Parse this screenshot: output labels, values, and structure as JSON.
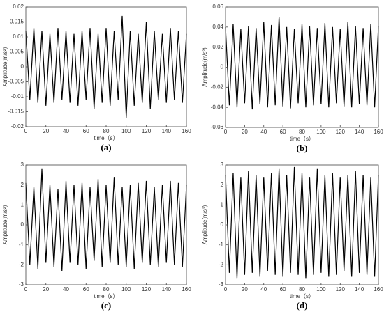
{
  "chart_data": [
    {
      "type": "line",
      "caption": "(a)",
      "xlabel": "time（s）",
      "ylabel": "Amplitude(m/s²)",
      "color": "#000000",
      "xlim": [
        0,
        160
      ],
      "xticks": [
        0,
        20,
        40,
        60,
        80,
        100,
        120,
        140,
        160
      ],
      "ylim": [
        -0.02,
        0.02
      ],
      "yticks": [
        -0.02,
        -0.015,
        -0.01,
        -0.005,
        0,
        0.005,
        0.01,
        0.015,
        0.02
      ],
      "x": [
        0,
        4,
        8,
        12,
        16,
        20,
        24,
        28,
        32,
        36,
        40,
        44,
        48,
        52,
        56,
        60,
        64,
        68,
        72,
        76,
        80,
        84,
        88,
        92,
        96,
        100,
        104,
        108,
        112,
        116,
        120,
        124,
        128,
        132,
        136,
        140,
        144,
        148,
        152,
        156,
        160
      ],
      "values": [
        0.012,
        -0.011,
        0.013,
        -0.012,
        0.012,
        -0.013,
        0.011,
        -0.012,
        0.013,
        -0.011,
        0.012,
        -0.012,
        0.011,
        -0.013,
        0.012,
        -0.011,
        0.013,
        -0.014,
        0.011,
        -0.012,
        0.013,
        -0.013,
        0.012,
        -0.011,
        0.017,
        -0.017,
        0.012,
        -0.013,
        0.011,
        -0.012,
        0.015,
        -0.014,
        0.012,
        -0.011,
        0.011,
        -0.012,
        0.013,
        -0.011,
        0.012,
        -0.012,
        0.011
      ]
    },
    {
      "type": "line",
      "caption": "(b)",
      "xlabel": "time（s）",
      "ylabel": "Amplitude(m/s²)",
      "color": "#000000",
      "xlim": [
        0,
        160
      ],
      "xticks": [
        0,
        20,
        40,
        60,
        80,
        100,
        120,
        140,
        160
      ],
      "ylim": [
        -0.06,
        0.06
      ],
      "yticks": [
        -0.06,
        -0.04,
        -0.02,
        0,
        0.02,
        0.04,
        0.06
      ],
      "x": [
        0,
        4,
        8,
        12,
        16,
        20,
        24,
        28,
        32,
        36,
        40,
        44,
        48,
        52,
        56,
        60,
        64,
        68,
        72,
        76,
        80,
        84,
        88,
        92,
        96,
        100,
        104,
        108,
        112,
        116,
        120,
        124,
        128,
        132,
        136,
        140,
        144,
        148,
        152,
        156,
        160
      ],
      "values": [
        0.04,
        -0.038,
        0.043,
        -0.04,
        0.038,
        -0.036,
        0.041,
        -0.042,
        0.039,
        -0.037,
        0.045,
        -0.04,
        0.042,
        -0.038,
        0.05,
        -0.039,
        0.04,
        -0.041,
        0.038,
        -0.036,
        0.043,
        -0.04,
        0.041,
        -0.038,
        0.039,
        -0.037,
        0.044,
        -0.04,
        0.04,
        -0.036,
        0.038,
        -0.039,
        0.045,
        -0.04,
        0.041,
        -0.037,
        0.039,
        -0.038,
        0.043,
        -0.04,
        0.041
      ]
    },
    {
      "type": "line",
      "caption": "(c)",
      "xlabel": "time（s）",
      "ylabel": "Amplitude(m/s²)",
      "color": "#000000",
      "xlim": [
        0,
        160
      ],
      "xticks": [
        0,
        20,
        40,
        60,
        80,
        100,
        120,
        140,
        160
      ],
      "ylim": [
        -3,
        3
      ],
      "yticks": [
        -3,
        -2,
        -1,
        0,
        1,
        2,
        3
      ],
      "x": [
        0,
        4,
        8,
        12,
        16,
        20,
        24,
        28,
        32,
        36,
        40,
        44,
        48,
        52,
        56,
        60,
        64,
        68,
        72,
        76,
        80,
        84,
        88,
        92,
        96,
        100,
        104,
        108,
        112,
        116,
        120,
        124,
        128,
        132,
        136,
        140,
        144,
        148,
        152,
        156,
        160
      ],
      "values": [
        2.1,
        -2.0,
        1.9,
        -2.2,
        2.8,
        -1.9,
        2.0,
        -2.1,
        1.8,
        -2.3,
        2.2,
        -1.9,
        2.0,
        -2.0,
        2.1,
        -2.2,
        1.9,
        -1.8,
        2.3,
        -2.1,
        2.0,
        -1.9,
        2.4,
        -2.0,
        1.9,
        -2.1,
        2.0,
        -2.2,
        2.1,
        -1.9,
        2.2,
        -2.0,
        1.9,
        -2.1,
        2.0,
        -1.9,
        2.2,
        -2.0,
        2.1,
        -2.1,
        2.0
      ]
    },
    {
      "type": "line",
      "caption": "(d)",
      "xlabel": "time（s）",
      "ylabel": "Amplitude(m/s²)",
      "color": "#000000",
      "xlim": [
        0,
        160
      ],
      "xticks": [
        0,
        20,
        40,
        60,
        80,
        100,
        120,
        140,
        160
      ],
      "ylim": [
        -3,
        3
      ],
      "yticks": [
        -3,
        -2,
        -1,
        0,
        1,
        2,
        3
      ],
      "x": [
        0,
        4,
        8,
        12,
        16,
        20,
        24,
        28,
        32,
        36,
        40,
        44,
        48,
        52,
        56,
        60,
        64,
        68,
        72,
        76,
        80,
        84,
        88,
        92,
        96,
        100,
        104,
        108,
        112,
        116,
        120,
        124,
        128,
        132,
        136,
        140,
        144,
        148,
        152,
        156,
        160
      ],
      "values": [
        2.5,
        -2.4,
        2.6,
        -2.7,
        2.4,
        -2.5,
        2.7,
        -2.4,
        2.5,
        -2.6,
        2.4,
        -2.3,
        2.6,
        -2.5,
        2.8,
        -2.6,
        2.5,
        -2.4,
        2.9,
        -2.5,
        2.6,
        -2.7,
        2.4,
        -2.5,
        2.8,
        -2.4,
        2.5,
        -2.6,
        2.6,
        -2.5,
        2.4,
        -2.3,
        2.5,
        -2.6,
        2.7,
        -2.4,
        2.5,
        -2.5,
        2.4,
        -2.6,
        2.5
      ]
    }
  ]
}
